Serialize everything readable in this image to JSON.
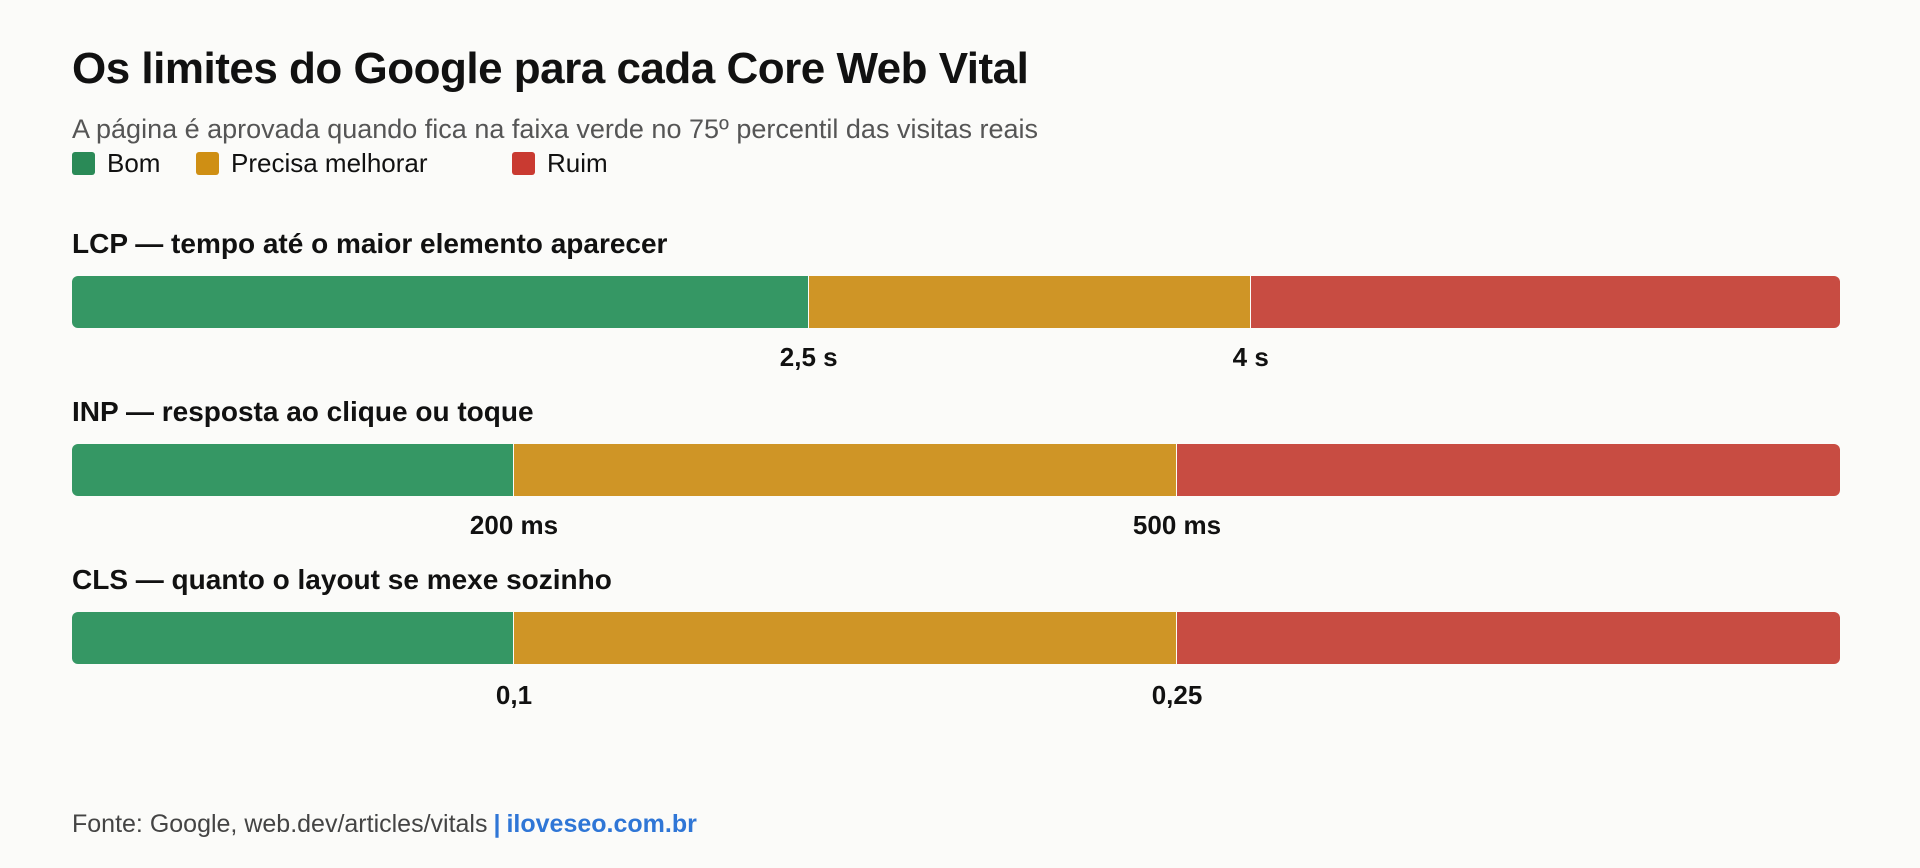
{
  "chart_data": {
    "type": "bar",
    "title": "Os limites do Google para cada Core Web Vital",
    "subtitle": "A página é aprovada quando fica na faixa verde no 75º percentil das visitas reais",
    "legend": {
      "placement": "top-left",
      "entries": [
        {
          "name": "Bom",
          "color": "#2a8a57"
        },
        {
          "name": "Precisa melhorar",
          "color": "#cf8f14"
        },
        {
          "name": "Ruim",
          "color": "#c93a31"
        }
      ]
    },
    "orientation": "horizontal",
    "stacked": true,
    "grid": false,
    "metrics": [
      {
        "label": "LCP — tempo até o maior elemento aparecer",
        "thresholds": [
          {
            "value": 2.5,
            "label": "2,5 s"
          },
          {
            "value": 4,
            "label": "4 s"
          }
        ],
        "segments": [
          {
            "name": "Bom",
            "share": 0.4167
          },
          {
            "name": "Precisa melhorar",
            "share": 0.25
          },
          {
            "name": "Ruim",
            "share": 0.3333
          }
        ]
      },
      {
        "label": "INP — resposta ao clique ou toque",
        "thresholds": [
          {
            "value": 200,
            "label": "200 ms"
          },
          {
            "value": 500,
            "label": "500 ms"
          }
        ],
        "segments": [
          {
            "name": "Bom",
            "share": 0.25
          },
          {
            "name": "Precisa melhorar",
            "share": 0.375
          },
          {
            "name": "Ruim",
            "share": 0.375
          }
        ]
      },
      {
        "label": "CLS — quanto o layout se mexe sozinho",
        "thresholds": [
          {
            "value": 0.1,
            "label": "0,1"
          },
          {
            "value": 0.25,
            "label": "0,25"
          }
        ],
        "segments": [
          {
            "name": "Bom",
            "share": 0.25
          },
          {
            "name": "Precisa melhorar",
            "share": 0.375
          },
          {
            "name": "Ruim",
            "share": 0.375
          }
        ]
      }
    ]
  },
  "colors": {
    "good": "#359764",
    "mid": "#cf9526",
    "bad": "#c84c42",
    "brand": "#2f76d6"
  },
  "footer": {
    "source": "Fonte: Google, web.dev/articles/vitals",
    "separator": "|",
    "brand": "iloveseo.com.br"
  }
}
